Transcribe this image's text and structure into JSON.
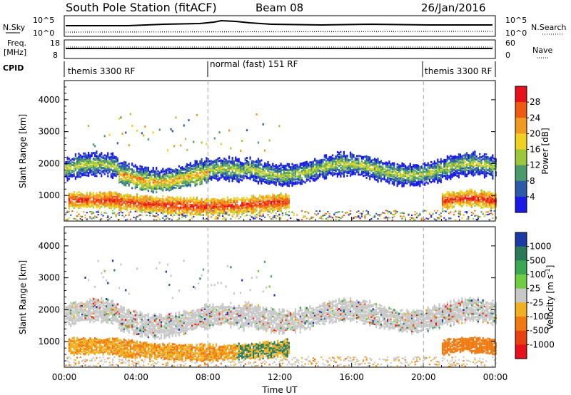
{
  "header": {
    "title": "South Pole Station (fitACF)",
    "beam": "Beam 08",
    "date": "26/Jan/2016"
  },
  "panels": {
    "noise": {
      "left_label": "N.Sky",
      "right_label": "N.Search",
      "left_ticks": [
        "10^5",
        "10^0"
      ],
      "right_ticks": [
        "10^5",
        "10^0"
      ]
    },
    "freq": {
      "left_label_1": "Freq.",
      "left_label_2": "[MHz]",
      "right_label": "Nave",
      "left_ticks": [
        "18",
        "8"
      ],
      "right_ticks": [
        "60",
        "0"
      ]
    },
    "cpid": {
      "label": "CPID",
      "segments": [
        {
          "text": "themis 3300 RF",
          "start_h": 0
        },
        {
          "text": "normal (fast) 151 RF",
          "start_h": 8
        },
        {
          "text": "themis 3300 RF",
          "start_h": 20
        }
      ]
    }
  },
  "chart_data": [
    {
      "type": "heatmap",
      "parameter": "Power",
      "ylabel": "Slant Range [km]",
      "ylim": [
        200,
        4600
      ],
      "yticks": [
        "1000",
        "2000",
        "3000",
        "4000"
      ],
      "xlim": [
        0,
        24
      ],
      "colorbar": {
        "label": "Power [dB]",
        "ticks": [
          "28",
          "24",
          "20",
          "16",
          "12",
          "8",
          "4"
        ],
        "colors": [
          "#e8101a",
          "#f05a10",
          "#f09a20",
          "#f0d020",
          "#9ac83a",
          "#4a9a6a",
          "#2a5aa8",
          "#1a1ae8"
        ]
      },
      "bands": [
        {
          "name": "upper",
          "range_km": [
            1600,
            2300
          ],
          "level": "moderate"
        },
        {
          "name": "lower",
          "range_km": [
            600,
            1200
          ],
          "level": "high"
        }
      ]
    },
    {
      "type": "heatmap",
      "parameter": "Velocity",
      "ylabel": "Slant Range [km]",
      "ylim": [
        200,
        4600
      ],
      "yticks": [
        "1000",
        "2000",
        "3000",
        "4000"
      ],
      "xlim": [
        0,
        24
      ],
      "colorbar": {
        "label": "Velocity [m s-1]",
        "ticks": [
          "1000",
          "500",
          "100",
          "25",
          "-25",
          "-100",
          "-500",
          "-1000"
        ],
        "colors": [
          "#1a3aa8",
          "#2a7a5a",
          "#3aa850",
          "#70cc40",
          "#c8c8c8",
          "#f0b020",
          "#f07a10",
          "#e84010",
          "#e8101a"
        ]
      }
    }
  ],
  "x_axis": {
    "label": "Time UT",
    "ticks": [
      "00:00",
      "04:00",
      "08:00",
      "12:00",
      "16:00",
      "20:00",
      "00:00"
    ]
  }
}
